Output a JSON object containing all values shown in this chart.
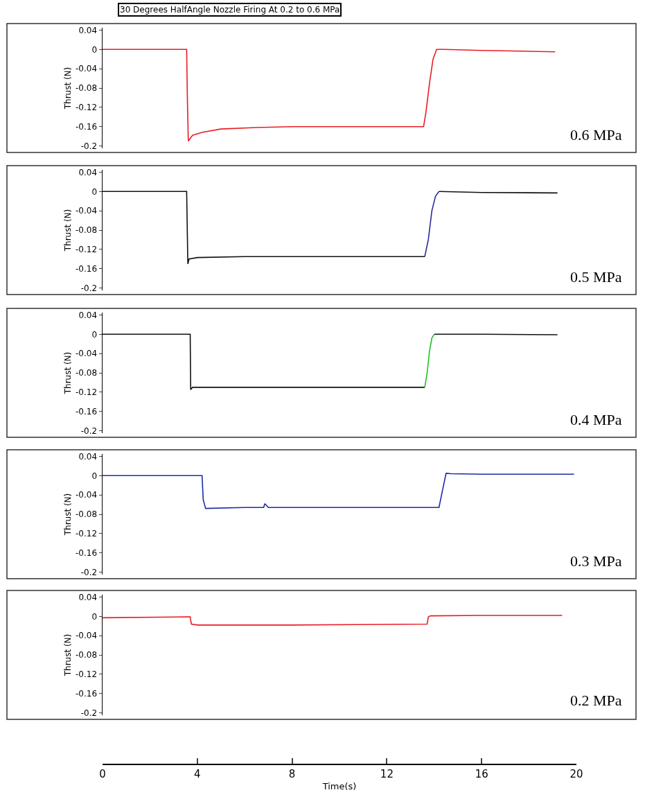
{
  "chart_data": [
    {
      "type": "line",
      "title": "30 Degrees HalfAngle Nozzle Firing At 0.2 to 0.6 MPa",
      "ylabel": "Thrust (N)",
      "annotations": [
        "0.6 MPa"
      ],
      "xlim": [
        0,
        20
      ],
      "ylim": [
        -0.205,
        0.045
      ],
      "yticks": [
        0.04,
        0,
        -0.04,
        -0.08,
        -0.12,
        -0.16,
        -0.2
      ],
      "tick_labels": "y",
      "marker": "none",
      "line_style": "solid",
      "series": [
        {
          "color": "#e81c24",
          "x": [
            0,
            3.55,
            3.58,
            3.62,
            3.8,
            4.2,
            5,
            6.5,
            8,
            10,
            12,
            13.55,
            13.65,
            13.8,
            13.95,
            14.1,
            14.4,
            16,
            19.1
          ],
          "values": [
            0,
            0,
            -0.1,
            -0.19,
            -0.178,
            -0.172,
            -0.165,
            -0.162,
            -0.16,
            -0.16,
            -0.16,
            -0.16,
            -0.13,
            -0.07,
            -0.02,
            0,
            0,
            -0.002,
            -0.005
          ]
        }
      ]
    },
    {
      "type": "line",
      "ylabel": "Thrust (N)",
      "annotations": [
        "0.5 MPa"
      ],
      "xlim": [
        0,
        20
      ],
      "ylim": [
        -0.205,
        0.045
      ],
      "yticks": [
        0.04,
        0,
        -0.04,
        -0.08,
        -0.12,
        -0.16,
        -0.2
      ],
      "tick_labels": "y",
      "marker": "none",
      "line_style": "solid",
      "series": [
        {
          "color": "#111111",
          "x": [
            0,
            3.55,
            3.6,
            3.65,
            4,
            6,
            10,
            13.6,
            13.9,
            14.2,
            16,
            19.2
          ],
          "values": [
            0,
            0,
            -0.15,
            -0.14,
            -0.137,
            -0.135,
            -0.135,
            -0.135,
            null,
            0,
            -0.002,
            -0.003
          ]
        },
        {
          "color": "#2a2a9a",
          "x": [
            13.6,
            13.75,
            13.9,
            14.05,
            14.2
          ],
          "values": [
            -0.135,
            -0.1,
            -0.04,
            -0.01,
            0
          ]
        }
      ]
    },
    {
      "type": "line",
      "ylabel": "Thrust (N)",
      "annotations": [
        "0.4 MPa"
      ],
      "xlim": [
        0,
        20
      ],
      "ylim": [
        -0.205,
        0.045
      ],
      "yticks": [
        0.04,
        0,
        -0.04,
        -0.08,
        -0.12,
        -0.16,
        -0.2
      ],
      "tick_labels": "y",
      "marker": "none",
      "line_style": "solid",
      "series": [
        {
          "color": "#111111",
          "x": [
            0,
            3.7,
            3.72,
            3.8,
            6,
            10,
            13.6,
            13.8,
            14,
            16,
            19.2
          ],
          "values": [
            0,
            0,
            -0.115,
            -0.11,
            -0.11,
            -0.11,
            -0.11,
            null,
            0,
            0,
            -0.001
          ]
        },
        {
          "color": "#1fc21f",
          "x": [
            13.6,
            13.7,
            13.8,
            13.9,
            14
          ],
          "values": [
            -0.11,
            -0.08,
            -0.035,
            -0.008,
            0
          ]
        }
      ]
    },
    {
      "type": "line",
      "ylabel": "Thrust (N)",
      "annotations": [
        "0.3 MPa"
      ],
      "xlim": [
        0,
        20
      ],
      "ylim": [
        -0.205,
        0.045
      ],
      "yticks": [
        0.04,
        0,
        -0.04,
        -0.08,
        -0.12,
        -0.16,
        -0.2
      ],
      "tick_labels": "y",
      "marker": "none",
      "line_style": "solid",
      "series": [
        {
          "color": "#1c2aa8",
          "x": [
            0,
            4.2,
            4.25,
            4.35,
            6,
            6.8,
            6.85,
            7,
            10,
            14.2,
            14.35,
            14.5,
            14.7,
            16,
            19.9
          ],
          "values": [
            0,
            0,
            -0.05,
            -0.068,
            -0.066,
            -0.066,
            -0.058,
            -0.066,
            -0.066,
            -0.066,
            -0.03,
            0.005,
            0.004,
            0.003,
            0.003
          ]
        }
      ]
    },
    {
      "type": "line",
      "ylabel": "Thrust (N)",
      "xlabel": "Time(s)",
      "annotations": [
        "0.2 MPa"
      ],
      "xlim": [
        0,
        20
      ],
      "xticks": [
        0,
        4,
        8,
        12,
        16,
        20
      ],
      "ylim": [
        -0.205,
        0.045
      ],
      "yticks": [
        0.04,
        0,
        -0.04,
        -0.08,
        -0.12,
        -0.16,
        -0.2
      ],
      "marker": "none",
      "line_style": "solid",
      "series": [
        {
          "color": "#e81c24",
          "x": [
            0,
            3.7,
            3.75,
            4,
            8,
            13.7,
            13.75,
            13.85,
            16,
            19.4
          ],
          "values": [
            -0.003,
            -0.001,
            -0.016,
            -0.018,
            -0.018,
            -0.016,
            -0.001,
            0.001,
            0.002,
            0.002
          ]
        }
      ]
    }
  ]
}
